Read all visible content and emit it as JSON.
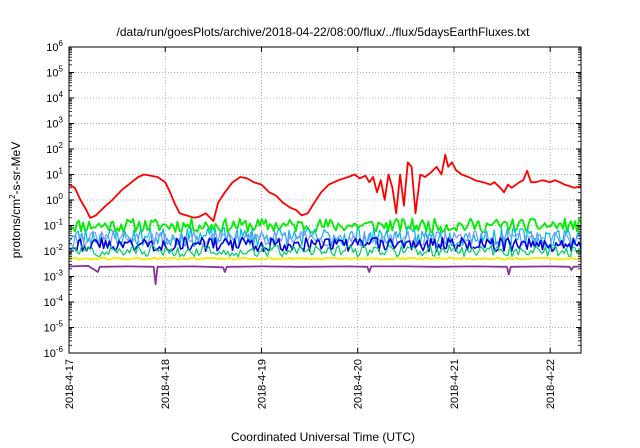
{
  "chart_data": {
    "type": "line",
    "title": "/data/run/goesPlots/archive/2018-04-22/08:00/flux/../flux/5daysEarthFluxes.txt",
    "xlabel": "Coordinated Universal Time (UTC)",
    "ylabel": {
      "base": "protons/cm",
      "sup": "2",
      "rest": "-s-sr-MeV"
    },
    "x_range_days": [
      0,
      5.32
    ],
    "xticks": [
      {
        "label": "2018-4-17",
        "day": 0
      },
      {
        "label": "2018-4-18",
        "day": 1
      },
      {
        "label": "2018-4-19",
        "day": 2
      },
      {
        "label": "2018-4-20",
        "day": 3
      },
      {
        "label": "2018-4-21",
        "day": 4
      },
      {
        "label": "2018-4-22",
        "day": 5
      }
    ],
    "yscale": "log",
    "ylim_exp": [
      -6,
      6
    ],
    "yticks": [
      {
        "base": "10",
        "exp": "-6"
      },
      {
        "base": "10",
        "exp": "-5"
      },
      {
        "base": "10",
        "exp": "-4"
      },
      {
        "base": "10",
        "exp": "-3"
      },
      {
        "base": "10",
        "exp": "-2"
      },
      {
        "base": "10",
        "exp": "-1"
      },
      {
        "base": "10",
        "exp": "0"
      },
      {
        "base": "10",
        "exp": "1"
      },
      {
        "base": "10",
        "exp": "2"
      },
      {
        "base": "10",
        "exp": "3"
      },
      {
        "base": "10",
        "exp": "4"
      },
      {
        "base": "10",
        "exp": "5"
      },
      {
        "base": "10",
        "exp": "6"
      }
    ],
    "grid": true,
    "series": [
      {
        "color": "#ff0000",
        "width": 1.8,
        "points": [
          [
            0,
            4
          ],
          [
            0.06,
            3
          ],
          [
            0.12,
            1
          ],
          [
            0.18,
            0.4
          ],
          [
            0.22,
            0.2
          ],
          [
            0.28,
            0.25
          ],
          [
            0.36,
            0.5
          ],
          [
            0.45,
            1
          ],
          [
            0.55,
            2.5
          ],
          [
            0.65,
            5
          ],
          [
            0.72,
            8
          ],
          [
            0.78,
            10
          ],
          [
            0.85,
            9
          ],
          [
            0.92,
            8
          ],
          [
            1.0,
            5
          ],
          [
            1.05,
            2
          ],
          [
            1.1,
            0.7
          ],
          [
            1.15,
            0.3
          ],
          [
            1.22,
            0.25
          ],
          [
            1.3,
            0.2
          ],
          [
            1.35,
            0.22
          ],
          [
            1.42,
            0.3
          ],
          [
            1.5,
            0.15
          ],
          [
            1.55,
            0.8
          ],
          [
            1.62,
            2
          ],
          [
            1.7,
            5
          ],
          [
            1.78,
            8
          ],
          [
            1.85,
            7
          ],
          [
            1.92,
            5
          ],
          [
            2.0,
            4
          ],
          [
            2.08,
            2
          ],
          [
            2.15,
            1.5
          ],
          [
            2.22,
            0.8
          ],
          [
            2.3,
            0.5
          ],
          [
            2.36,
            0.4
          ],
          [
            2.42,
            0.25
          ],
          [
            2.48,
            0.3
          ],
          [
            2.55,
            0.8
          ],
          [
            2.62,
            2
          ],
          [
            2.7,
            4
          ],
          [
            2.8,
            6
          ],
          [
            2.9,
            8
          ],
          [
            2.97,
            10
          ],
          [
            3.02,
            7
          ],
          [
            3.08,
            9
          ],
          [
            3.12,
            5
          ],
          [
            3.16,
            8
          ],
          [
            3.2,
            2
          ],
          [
            3.24,
            6
          ],
          [
            3.28,
            1
          ],
          [
            3.32,
            10
          ],
          [
            3.36,
            3
          ],
          [
            3.4,
            0.3
          ],
          [
            3.44,
            10
          ],
          [
            3.48,
            0.6
          ],
          [
            3.52,
            30
          ],
          [
            3.56,
            20
          ],
          [
            3.6,
            0.3
          ],
          [
            3.65,
            10
          ],
          [
            3.7,
            8
          ],
          [
            3.76,
            12
          ],
          [
            3.82,
            20
          ],
          [
            3.87,
            10
          ],
          [
            3.91,
            60
          ],
          [
            3.94,
            20
          ],
          [
            3.98,
            30
          ],
          [
            4.02,
            15
          ],
          [
            4.08,
            10
          ],
          [
            4.15,
            8
          ],
          [
            4.22,
            6
          ],
          [
            4.3,
            5
          ],
          [
            4.38,
            4
          ],
          [
            4.42,
            5
          ],
          [
            4.48,
            3
          ],
          [
            4.52,
            2
          ],
          [
            4.56,
            4
          ],
          [
            4.6,
            3
          ],
          [
            4.68,
            5
          ],
          [
            4.72,
            6
          ],
          [
            4.76,
            14
          ],
          [
            4.8,
            5
          ],
          [
            4.85,
            5
          ],
          [
            4.92,
            6
          ],
          [
            5.0,
            5
          ],
          [
            5.05,
            6
          ],
          [
            5.1,
            5
          ],
          [
            5.15,
            4
          ],
          [
            5.2,
            3.5
          ],
          [
            5.25,
            3
          ],
          [
            5.32,
            3.5
          ]
        ]
      },
      {
        "color": "#00ee00",
        "width": 1.8,
        "gen": {
          "base": 0.1,
          "amp": 0.55,
          "seed": 11,
          "freq": 48
        }
      },
      {
        "color": "#00bbdd",
        "width": 1.2,
        "gen": {
          "base": 0.035,
          "amp": 0.75,
          "seed": 23,
          "freq": 52
        }
      },
      {
        "color": "#7799ff",
        "width": 1.2,
        "gen": {
          "base": 0.03,
          "amp": 0.6,
          "seed": 31,
          "freq": 44
        }
      },
      {
        "color": "#0000dd",
        "width": 1.6,
        "gen": {
          "base": 0.018,
          "amp": 0.55,
          "seed": 43,
          "freq": 50
        }
      },
      {
        "color": "#00cc66",
        "width": 1.2,
        "gen": {
          "base": 0.01,
          "amp": 0.45,
          "seed": 57,
          "freq": 46
        }
      },
      {
        "color": "#eeee00",
        "width": 1.8,
        "gen": {
          "base": 0.005,
          "amp": 0.08,
          "seed": 61,
          "freq": 40
        }
      },
      {
        "color": "#883399",
        "width": 1.8,
        "points": [
          [
            0,
            0.0025
          ],
          [
            0.2,
            0.0026
          ],
          [
            0.3,
            0.0015
          ],
          [
            0.32,
            0.0024
          ],
          [
            0.6,
            0.0025
          ],
          [
            0.88,
            0.0024
          ],
          [
            0.9,
            0.0005
          ],
          [
            0.92,
            0.0024
          ],
          [
            1.3,
            0.0025
          ],
          [
            1.6,
            0.0023
          ],
          [
            1.62,
            0.0015
          ],
          [
            1.64,
            0.0024
          ],
          [
            2.0,
            0.0025
          ],
          [
            2.4,
            0.0024
          ],
          [
            2.9,
            0.0025
          ],
          [
            3.1,
            0.0024
          ],
          [
            3.12,
            0.0015
          ],
          [
            3.14,
            0.0025
          ],
          [
            3.5,
            0.0025
          ],
          [
            3.8,
            0.0024
          ],
          [
            4.2,
            0.0025
          ],
          [
            4.55,
            0.0024
          ],
          [
            4.57,
            0.0012
          ],
          [
            4.59,
            0.0024
          ],
          [
            5.0,
            0.0025
          ],
          [
            5.2,
            0.0024
          ],
          [
            5.22,
            0.0018
          ],
          [
            5.24,
            0.0024
          ],
          [
            5.32,
            0.0025
          ]
        ]
      }
    ]
  }
}
